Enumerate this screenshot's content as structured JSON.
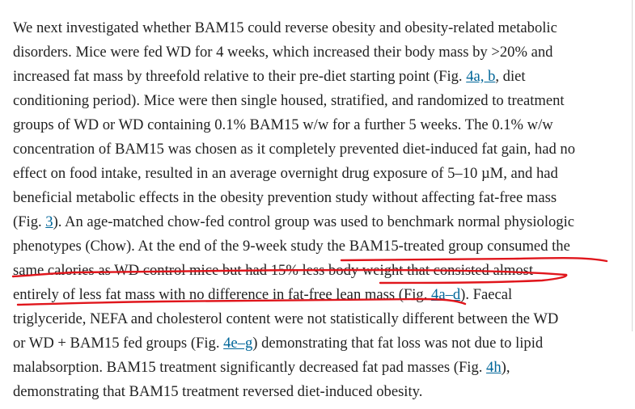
{
  "paragraph": {
    "lines": [
      [
        {
          "text": "We next investigated whether BAM15 could reverse obesity and obesity-related metabolic"
        }
      ],
      [
        {
          "text": "disorders. Mice were fed WD for 4 weeks, which increased their body mass by >20% and"
        }
      ],
      [
        {
          "text": "increased fat mass by threefold relative to their pre-diet starting point (Fig. "
        },
        {
          "text": "4a, b",
          "link": true
        },
        {
          "text": ", diet"
        }
      ],
      [
        {
          "text": "conditioning period). Mice were then single housed, stratified, and randomized to treatment"
        }
      ],
      [
        {
          "text": "groups of WD or WD containing 0.1% BAM15 w/w for a further 5 weeks. The 0.1% w/w"
        }
      ],
      [
        {
          "text": "concentration of BAM15 was chosen as it completely prevented diet-induced fat gain, had no"
        }
      ],
      [
        {
          "text": "effect on food intake, resulted in an average overnight drug exposure of 5–10 µM, and had"
        }
      ],
      [
        {
          "text": "beneficial metabolic effects in the obesity prevention study without affecting fat-free mass"
        }
      ],
      [
        {
          "text": "(Fig. "
        },
        {
          "text": "3",
          "link": true
        },
        {
          "text": "). An age-matched chow-fed control group was used to benchmark normal physiologic"
        }
      ],
      [
        {
          "text": "phenotypes (Chow). At the end of the 9-week study the BAM15-treated group consumed the"
        }
      ],
      [
        {
          "text": "same calories as WD control mice but had 15% less body weight that consisted almost"
        }
      ],
      [
        {
          "text": "entirely of less fat mass with no difference in fat-free lean mass (Fig. "
        },
        {
          "text": "4a–d",
          "link": true
        },
        {
          "text": "). Faecal"
        }
      ],
      [
        {
          "text": "triglyceride, NEFA and cholesterol content were not statistically different between the WD"
        }
      ],
      [
        {
          "text": "or WD + BAM15 fed groups (Fig. "
        },
        {
          "text": "4e–g",
          "link": true
        },
        {
          "text": ") demonstrating that fat loss was not due to lipid"
        }
      ],
      [
        {
          "text": "malabsorption. BAM15 treatment significantly decreased fat pad masses (Fig. "
        },
        {
          "text": "4h",
          "link": true
        },
        {
          "text": "),"
        }
      ],
      [
        {
          "text": "demonstrating that BAM15 treatment reversed diet-induced obesity."
        }
      ]
    ]
  },
  "colors": {
    "text": "#222222",
    "link": "#006699",
    "annotation": "#e0161c"
  }
}
